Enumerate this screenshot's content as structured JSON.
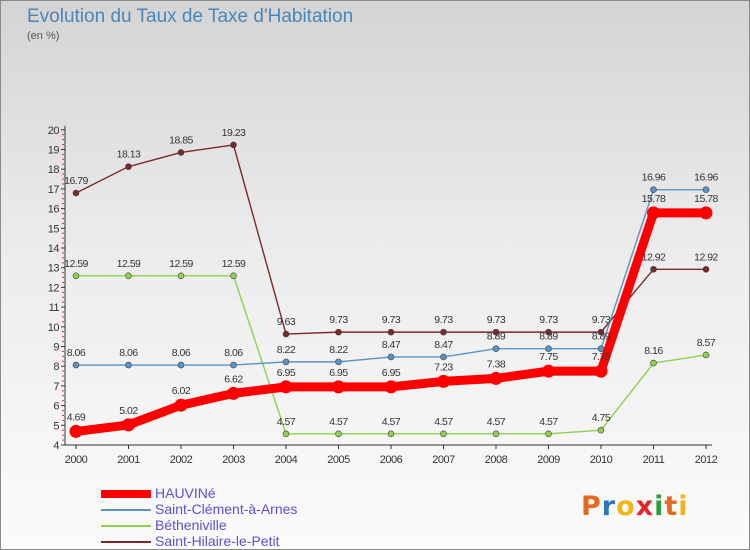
{
  "title": "Evolution du Taux de Taxe d'Habitation",
  "subtitle": "(en %)",
  "logo": "Proxiti",
  "logo_colors": [
    "#e8681e",
    "#2f76b8",
    "#f0b51a",
    "#e2262a",
    "#2e9c3e",
    "#e8681e",
    "#f0b51a"
  ],
  "chart_data": {
    "type": "line",
    "title": "Evolution du Taux de Taxe d'Habitation",
    "ylabel": "(en %)",
    "xlabel": "",
    "x": [
      "2000",
      "2001",
      "2002",
      "2003",
      "2004",
      "2005",
      "2006",
      "2007",
      "2008",
      "2009",
      "2010",
      "2011",
      "2012"
    ],
    "ylim": [
      4,
      20
    ],
    "yticks": [
      4,
      5,
      6,
      7,
      8,
      9,
      10,
      11,
      12,
      13,
      14,
      15,
      16,
      17,
      18,
      19,
      20
    ],
    "grid": false,
    "legend_position": "bottom-left",
    "series": [
      {
        "name": "Saint-Hilaire-le-Petit",
        "color": "#7a2a2a",
        "values": [
          16.79,
          18.13,
          18.85,
          19.23,
          9.63,
          9.73,
          9.73,
          9.73,
          9.73,
          9.73,
          9.73,
          12.92,
          12.92
        ],
        "labels": [
          "16.79",
          "18.13",
          "18.85",
          "19.23",
          "9.63",
          "9.73",
          "9.73",
          "9.73",
          "9.73",
          "9.73",
          "9.73",
          "12.92",
          "12.92"
        ]
      },
      {
        "name": "Bétheniville",
        "color": "#8fd14f",
        "values": [
          12.59,
          12.59,
          12.59,
          12.59,
          4.57,
          4.57,
          4.57,
          4.57,
          4.57,
          4.57,
          4.75,
          8.16,
          8.57
        ],
        "labels": [
          "12.59",
          "12.59",
          "12.59",
          "12.59",
          "4.57",
          "4.57",
          "4.57",
          "4.57",
          "4.57",
          "4.57",
          "4.75",
          "8.16",
          "8.57"
        ]
      },
      {
        "name": "Saint-Clément-à-Arnes",
        "color": "#5b93c7",
        "values": [
          8.06,
          8.06,
          8.06,
          8.06,
          8.22,
          8.22,
          8.47,
          8.47,
          8.89,
          8.89,
          8.89,
          16.96,
          16.96
        ],
        "labels": [
          "8.06",
          "8.06",
          "8.06",
          "8.06",
          "8.22",
          "8.22",
          "8.47",
          "8.47",
          "8.89",
          "8.89",
          "8.89",
          "16.96",
          "16.96"
        ]
      },
      {
        "name": "HAUVINé",
        "color": "#ff0000",
        "values": [
          4.69,
          5.02,
          6.02,
          6.62,
          6.95,
          6.95,
          6.95,
          7.23,
          7.38,
          7.75,
          7.75,
          15.78,
          15.78
        ],
        "labels": [
          "4.69",
          "5.02",
          "6.02",
          "6.62",
          "6.95",
          "6.95",
          "6.95",
          "7.23",
          "7.38",
          "7.75",
          "7.75",
          "15.78",
          "15.78"
        ]
      }
    ]
  },
  "legend": [
    {
      "label": "HAUVINé",
      "color": "#ff0000"
    },
    {
      "label": "Saint-Clément-à-Arnes",
      "color": "#5b93c7"
    },
    {
      "label": "Bétheniville",
      "color": "#8fd14f"
    },
    {
      "label": "Saint-Hilaire-le-Petit",
      "color": "#7a2a2a"
    }
  ]
}
